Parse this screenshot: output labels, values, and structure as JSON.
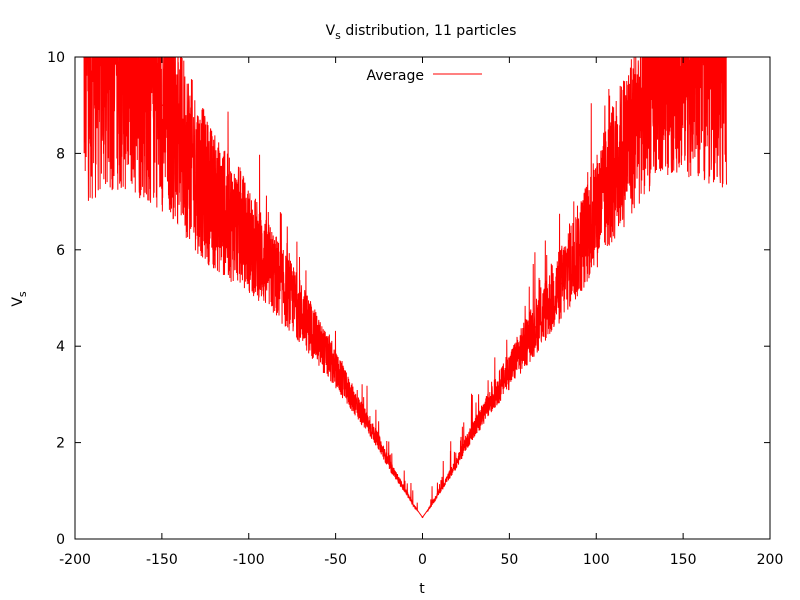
{
  "chart_data": {
    "type": "line",
    "title": {
      "main": "V",
      "sub": "s",
      "rest": " distribution, 11 particles"
    },
    "xlabel": "t",
    "ylabel": {
      "main": "V",
      "sub": "s"
    },
    "xlim": [
      -200,
      200
    ],
    "ylim": [
      0,
      10
    ],
    "xticks": [
      -200,
      -150,
      -100,
      -50,
      0,
      50,
      100,
      150,
      200
    ],
    "yticks": [
      0,
      2,
      4,
      6,
      8,
      10
    ],
    "xtick_labels": [
      "-200",
      "-150",
      "-100",
      "-50",
      "0",
      "50",
      "100",
      "150",
      "200"
    ],
    "ytick_labels": [
      "0",
      "2",
      "4",
      "6",
      "8",
      "10"
    ],
    "grid": false,
    "legend_position": "top-center",
    "series": [
      {
        "name": "Average",
        "color": "#ff0000",
        "x": [
          -195,
          -190,
          -185,
          -180,
          -175,
          -170,
          -165,
          -160,
          -155,
          -150,
          -145,
          -140,
          -135,
          -130,
          -125,
          -120,
          -115,
          -110,
          -105,
          -100,
          -95,
          -90,
          -85,
          -80,
          -75,
          -70,
          -65,
          -60,
          -55,
          -50,
          -45,
          -40,
          -35,
          -30,
          -25,
          -20,
          -15,
          -10,
          -5,
          0,
          5,
          10,
          15,
          20,
          25,
          30,
          35,
          40,
          45,
          50,
          55,
          60,
          65,
          70,
          75,
          80,
          85,
          90,
          95,
          100,
          105,
          110,
          115,
          120,
          125,
          130,
          135,
          140,
          145,
          150,
          155,
          160,
          165,
          170,
          175
        ],
        "y": [
          10,
          10,
          10,
          10,
          10,
          9.8,
          9.6,
          9.4,
          9.2,
          9.0,
          8.8,
          8.4,
          8.0,
          7.6,
          7.3,
          7.0,
          6.8,
          6.6,
          6.5,
          6.2,
          6.0,
          5.7,
          5.5,
          5.2,
          5.0,
          4.7,
          4.4,
          4.1,
          3.8,
          3.5,
          3.2,
          2.9,
          2.6,
          2.3,
          2.0,
          1.6,
          1.3,
          1.0,
          0.7,
          0.45,
          0.7,
          1.0,
          1.3,
          1.6,
          2.0,
          2.3,
          2.6,
          2.9,
          3.2,
          3.5,
          3.8,
          4.1,
          4.4,
          4.7,
          5.0,
          5.3,
          5.7,
          6.0,
          6.4,
          6.8,
          7.2,
          7.6,
          8.0,
          8.4,
          8.8,
          9.2,
          9.5,
          9.8,
          10,
          10,
          10,
          10,
          10,
          10,
          10
        ]
      }
    ]
  }
}
